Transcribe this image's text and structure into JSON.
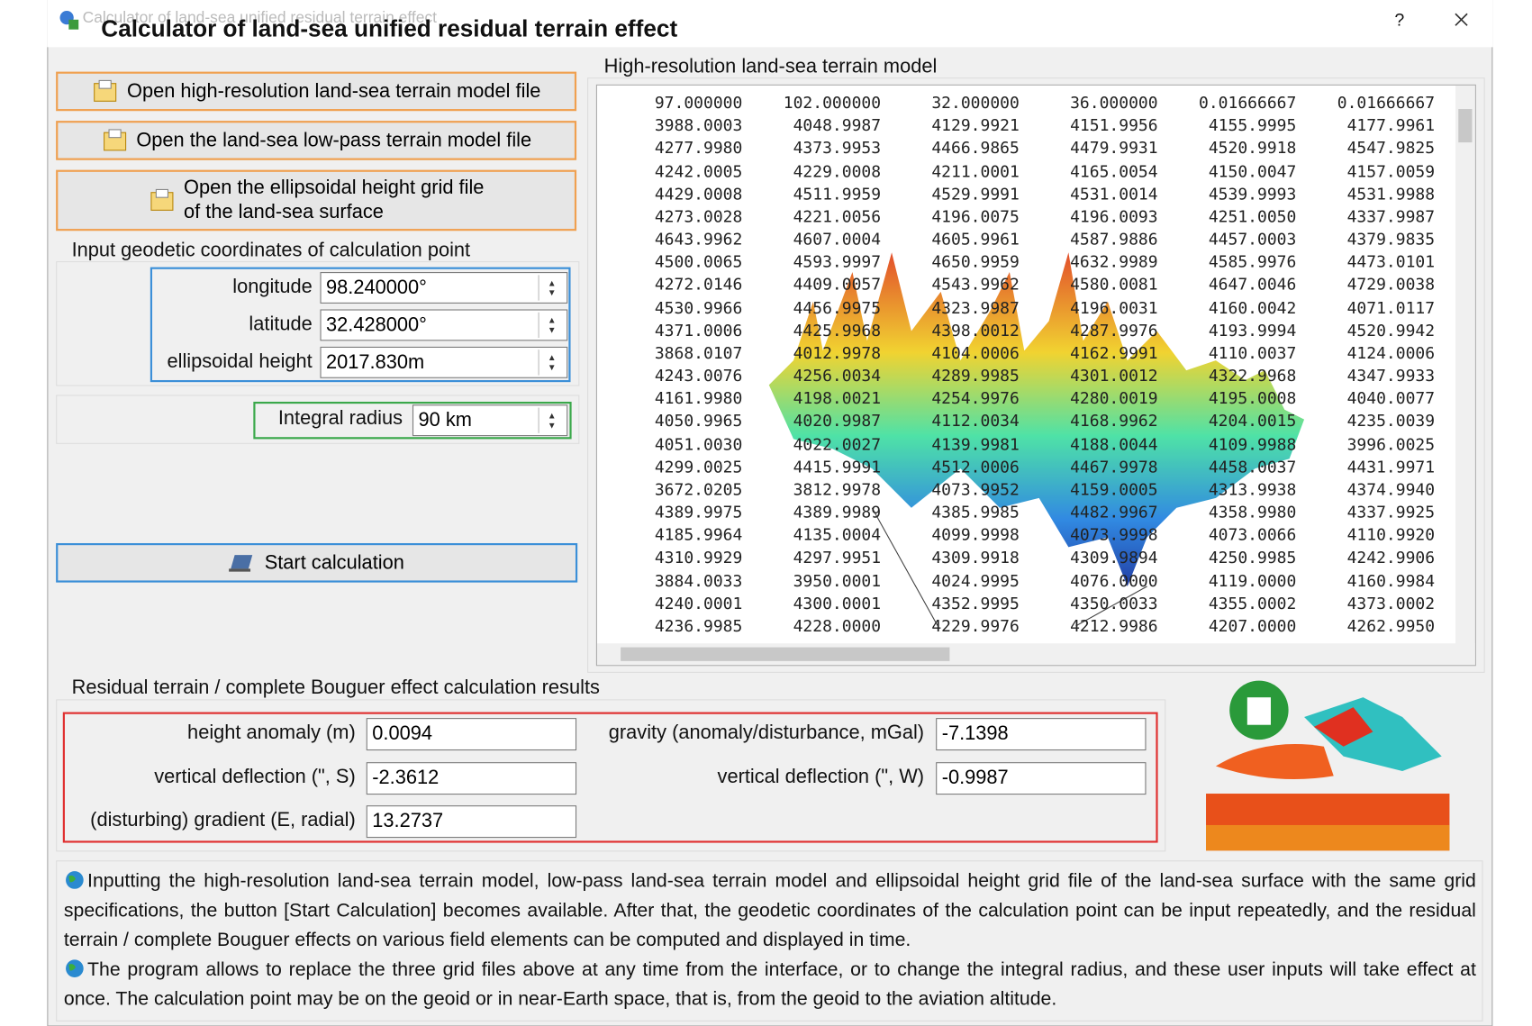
{
  "window": {
    "title": "Calculator of land-sea unified residual terrain effect",
    "help": "?"
  },
  "buttons": {
    "open_terrain": "Open high-resolution land-sea terrain model file",
    "open_lowpass": "Open the land-sea low-pass terrain model file",
    "open_ellipsoid": [
      "Open the ellipsoidal height grid file",
      "of the land-sea surface"
    ],
    "start": "Start calculation"
  },
  "input_group": {
    "title": "Input geodetic coordinates of calculation point",
    "fields": [
      {
        "label": "longitude",
        "value": "98.240000°"
      },
      {
        "label": "latitude",
        "value": "32.428000°"
      },
      {
        "label": "ellipsoidal height",
        "value": "2017.830m"
      }
    ],
    "integral_radius": {
      "label": "Integral radius",
      "value": "90 km"
    }
  },
  "terrain_panel": {
    "title": "High-resolution land-sea terrain model",
    "rows": [
      [
        "97.000000",
        "102.000000",
        "32.000000",
        "36.000000",
        "0.01666667",
        "0.01666667"
      ],
      [
        "3988.0003",
        "4048.9987",
        "4129.9921",
        "4151.9956",
        "4155.9995",
        "4177.9961"
      ],
      [
        "4277.9980",
        "4373.9953",
        "4466.9865",
        "4479.9931",
        "4520.9918",
        "4547.9825"
      ],
      [
        "4242.0005",
        "4229.0008",
        "4211.0001",
        "4165.0054",
        "4150.0047",
        "4157.0059"
      ],
      [
        "4429.0008",
        "4511.9959",
        "4529.9991",
        "4531.0014",
        "4539.9993",
        "4531.9988"
      ],
      [
        "4273.0028",
        "4221.0056",
        "4196.0075",
        "4196.0093",
        "4251.0050",
        "4337.9987"
      ],
      [
        "4643.9962",
        "4607.0004",
        "4605.9961",
        "4587.9886",
        "4457.0003",
        "4379.9835"
      ],
      [
        "4500.0065",
        "4593.9997",
        "4650.9959",
        "4632.9989",
        "4585.9976",
        "4473.0101"
      ],
      [
        "4272.0146",
        "4409.0057",
        "4543.9962",
        "4580.0081",
        "4647.0046",
        "4729.0038"
      ],
      [
        "4530.9966",
        "4456.9975",
        "4323.9987",
        "4196.0031",
        "4160.0042",
        "4071.0117"
      ],
      [
        "4371.0006",
        "4425.9968",
        "4398.0012",
        "4287.9976",
        "4193.9994",
        "4520.9942"
      ],
      [
        "3868.0107",
        "4012.9978",
        "4104.0006",
        "4162.9991",
        "4110.0037",
        "4124.0006"
      ],
      [
        "4243.0076",
        "4256.0034",
        "4289.9985",
        "4301.0012",
        "4322.9968",
        "4347.9933"
      ],
      [
        "4161.9980",
        "4198.0021",
        "4254.9976",
        "4280.0019",
        "4195.0008",
        "4040.0077"
      ],
      [
        "4050.9965",
        "4020.9987",
        "4112.0034",
        "4168.9962",
        "4204.0015",
        "4235.0039"
      ],
      [
        "4051.0030",
        "4022.0027",
        "4139.9981",
        "4188.0044",
        "4109.9988",
        "3996.0025"
      ],
      [
        "4299.0025",
        "4415.9991",
        "4512.0006",
        "4467.9978",
        "4458.0037",
        "4431.9971"
      ],
      [
        "3672.0205",
        "3812.9978",
        "4073.9952",
        "4159.0005",
        "4313.9938",
        "4374.9940"
      ],
      [
        "4389.9975",
        "4389.9989",
        "4385.9985",
        "4482.9967",
        "4358.9980",
        "4337.9925"
      ],
      [
        "4185.9964",
        "4135.0004",
        "4099.9998",
        "4073.9998",
        "4073.0066",
        "4110.9920"
      ],
      [
        "4310.9929",
        "4297.9951",
        "4309.9918",
        "4309.9894",
        "4250.9985",
        "4242.9906"
      ],
      [
        "3884.0033",
        "3950.0001",
        "4024.9995",
        "4076.0000",
        "4119.0000",
        "4160.9984"
      ],
      [
        "4240.0001",
        "4300.0001",
        "4352.9995",
        "4350.0033",
        "4355.0002",
        "4373.0002"
      ],
      [
        "4236.9985",
        "4228.0000",
        "4229.9976",
        "4212.9986",
        "4207.0000",
        "4262.9950"
      ]
    ]
  },
  "results": {
    "title": "Residual terrain / complete Bouguer effect calculation results",
    "fields": [
      {
        "label": "height anomaly (m)",
        "value": "0.0094"
      },
      {
        "label": "gravity (anomaly/disturbance, mGal)",
        "value": "-7.1398"
      },
      {
        "label": "vertical deflection (\", S)",
        "value": "-2.3612"
      },
      {
        "label": "vertical deflection (\", W)",
        "value": "-0.9987"
      },
      {
        "label": "(disturbing) gradient (E, radial)",
        "value": "13.2737"
      }
    ]
  },
  "notes": [
    "Inputting the high-resolution land-sea terrain model, low-pass land-sea terrain model and ellipsoidal height grid file of the land-sea surface with the same grid specifications, the button [Start Calculation] becomes available. After that, the geodetic coordinates of the calculation point can be input repeatedly, and the residual terrain / complete Bouguer effects on various field elements can be computed and displayed in time.",
    "The program allows to replace the three grid files above at any time from the interface, or to change the integral radius, and these user inputs will take effect at once. The calculation point may be on the geoid or in near-Earth space, that is, from the geoid to the aviation altitude."
  ]
}
